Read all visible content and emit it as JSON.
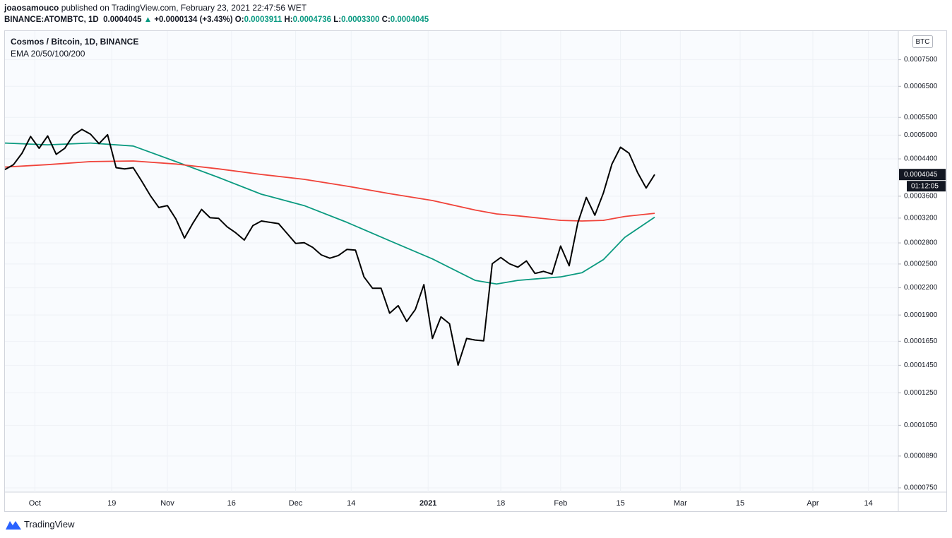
{
  "header": {
    "author": "joaosamouco",
    "published": "published on TradingView.com, February 23, 2021 22:47:56 WET",
    "symbol": "BINANCE:ATOMBTC, 1D",
    "last": "0.0004045",
    "arrow": "▲",
    "change": "+0.0000134 (+3.43%)",
    "open_label": "O:",
    "open": "0.0003911",
    "high_label": "H:",
    "high": "0.0004736",
    "low_label": "L:",
    "low": "0.0003300",
    "close_label": "C:",
    "close": "0.0004045"
  },
  "chart_data": {
    "type": "line",
    "title": "Cosmos / Bitcoin, 1D, BINANCE",
    "subtitle": "EMA 20/50/100/200",
    "currency": "BTC",
    "countdown": "01:12:05",
    "log_y": true,
    "grid": true,
    "xlim": [
      "2020-09-24",
      "2021-04-21"
    ],
    "ylim": [
      7.33e-05,
      0.000875
    ],
    "xticks": [
      {
        "value": "2020-10-01",
        "label": "Oct"
      },
      {
        "value": "2020-10-19",
        "label": "19"
      },
      {
        "value": "2020-11-01",
        "label": "Nov"
      },
      {
        "value": "2020-11-16",
        "label": "16"
      },
      {
        "value": "2020-12-01",
        "label": "Dec"
      },
      {
        "value": "2020-12-14",
        "label": "14"
      },
      {
        "value": "2021-01-01",
        "label": "2021"
      },
      {
        "value": "2021-01-18",
        "label": "18"
      },
      {
        "value": "2021-02-01",
        "label": "Feb"
      },
      {
        "value": "2021-02-15",
        "label": "15"
      },
      {
        "value": "2021-03-01",
        "label": "Mar"
      },
      {
        "value": "2021-03-15",
        "label": "15"
      },
      {
        "value": "2021-04-01",
        "label": "Apr"
      },
      {
        "value": "2021-04-14",
        "label": "14"
      }
    ],
    "yticks": [
      {
        "value": 0.00075,
        "label": "0.0007500"
      },
      {
        "value": 0.00065,
        "label": "0.0006500"
      },
      {
        "value": 0.00055,
        "label": "0.0005500"
      },
      {
        "value": 0.0005,
        "label": "0.0005000"
      },
      {
        "value": 0.00044,
        "label": "0.0004400"
      },
      {
        "value": 0.00036,
        "label": "0.0003600"
      },
      {
        "value": 0.00032,
        "label": "0.0003200"
      },
      {
        "value": 0.00028,
        "label": "0.0002800"
      },
      {
        "value": 0.00025,
        "label": "0.0002500"
      },
      {
        "value": 0.00022,
        "label": "0.0002200"
      },
      {
        "value": 0.00019,
        "label": "0.0001900"
      },
      {
        "value": 0.000165,
        "label": "0.0001650"
      },
      {
        "value": 0.000145,
        "label": "0.0001450"
      },
      {
        "value": 0.000125,
        "label": "0.0001250"
      },
      {
        "value": 0.000105,
        "label": "0.0001050"
      },
      {
        "value": 8.9e-05,
        "label": "0.0000890"
      },
      {
        "value": 7.5e-05,
        "label": "0.0000750"
      }
    ],
    "series": [
      {
        "color": "#0b9a80",
        "x": [
          "2020-09-24",
          "2020-10-04",
          "2020-10-14",
          "2020-10-24",
          "2020-11-03",
          "2020-11-13",
          "2020-11-23",
          "2020-12-03",
          "2020-12-13",
          "2020-12-23",
          "2021-01-02",
          "2021-01-12",
          "2021-01-17",
          "2021-01-22",
          "2021-02-01",
          "2021-02-06",
          "2021-02-11",
          "2021-02-16",
          "2021-02-23"
        ],
        "values": [
          0.0004792,
          0.0004746,
          0.0004792,
          0.0004716,
          0.0004336,
          0.0003981,
          0.0003638,
          0.0003422,
          0.0003128,
          0.0002834,
          0.0002569,
          0.0002289,
          0.0002245,
          0.0002289,
          0.0002332,
          0.0002386,
          0.000256,
          0.0002885,
          0.0003216
        ]
      },
      {
        "color": "#f0433a",
        "x": [
          "2020-09-24",
          "2020-10-04",
          "2020-10-14",
          "2020-10-24",
          "2020-11-03",
          "2020-11-13",
          "2020-11-23",
          "2020-12-03",
          "2020-12-13",
          "2020-12-23",
          "2021-01-02",
          "2021-01-12",
          "2021-01-17",
          "2021-01-22",
          "2021-02-01",
          "2021-02-06",
          "2021-02-11",
          "2021-02-16",
          "2021-02-23"
        ],
        "values": [
          0.0004211,
          0.0004266,
          0.0004336,
          0.000435,
          0.000428,
          0.0004169,
          0.0004047,
          0.0003942,
          0.00038,
          0.000365,
          0.0003517,
          0.0003341,
          0.0003273,
          0.0003239,
          0.0003161,
          0.0003151,
          0.0003161,
          0.0003228,
          0.0003284
        ]
      },
      {
        "color": "#000000",
        "x": [
          "2020-09-24",
          "2020-09-26",
          "2020-09-28",
          "2020-09-30",
          "2020-10-02",
          "2020-10-04",
          "2020-10-06",
          "2020-10-08",
          "2020-10-10",
          "2020-10-12",
          "2020-10-14",
          "2020-10-16",
          "2020-10-18",
          "2020-10-20",
          "2020-10-22",
          "2020-10-24",
          "2020-10-26",
          "2020-10-28",
          "2020-10-30",
          "2020-11-01",
          "2020-11-03",
          "2020-11-05",
          "2020-11-07",
          "2020-11-09",
          "2020-11-11",
          "2020-11-13",
          "2020-11-15",
          "2020-11-17",
          "2020-11-19",
          "2020-11-21",
          "2020-11-23",
          "2020-11-25",
          "2020-11-27",
          "2020-11-29",
          "2020-12-01",
          "2020-12-03",
          "2020-12-05",
          "2020-12-07",
          "2020-12-09",
          "2020-12-11",
          "2020-12-13",
          "2020-12-15",
          "2020-12-17",
          "2020-12-19",
          "2020-12-21",
          "2020-12-23",
          "2020-12-25",
          "2020-12-27",
          "2020-12-29",
          "2020-12-31",
          "2021-01-02",
          "2021-01-04",
          "2021-01-06",
          "2021-01-08",
          "2021-01-10",
          "2021-01-12",
          "2021-01-14",
          "2021-01-16",
          "2021-01-18",
          "2021-01-20",
          "2021-01-22",
          "2021-01-24",
          "2021-01-26",
          "2021-01-28",
          "2021-01-30",
          "2021-02-01",
          "2021-02-03",
          "2021-02-05",
          "2021-02-07",
          "2021-02-09",
          "2021-02-11",
          "2021-02-13",
          "2021-02-15",
          "2021-02-17",
          "2021-02-19",
          "2021-02-21",
          "2021-02-23"
        ],
        "values": [
          0.0004155,
          0.0004266,
          0.0004537,
          0.0004963,
          0.0004656,
          0.0004979,
          0.0004508,
          0.0004656,
          0.0004995,
          0.0005155,
          0.0005027,
          0.0004777,
          0.000501,
          0.0004196,
          0.0004169,
          0.0004196,
          0.0003903,
          0.0003613,
          0.0003387,
          0.0003422,
          0.0003184,
          0.0002874,
          0.0003117,
          0.0003353,
          0.0003206,
          0.0003195,
          0.0003053,
          0.0002957,
          0.0002844,
          0.0003074,
          0.0003151,
          0.0003128,
          0.0003107,
          0.0002947,
          0.0002793,
          0.0002803,
          0.0002733,
          0.0002626,
          0.0002579,
          0.0002617,
          0.0002703,
          0.0002694,
          0.0002332,
          0.0002194,
          0.0002194,
          0.0001919,
          0.0001998,
          0.0001835,
          0.0001958,
          0.0002237,
          0.0001675,
          0.0001881,
          0.0001813,
          0.0001451,
          0.0001675,
          0.0001661,
          0.0001654,
          0.0002504,
          0.0002589,
          0.0002504,
          0.0002458,
          0.0002541,
          0.0002376,
          0.0002403,
          0.0002368,
          0.0002753,
          0.0002476,
          0.0003117,
          0.0003577,
          0.000325,
          0.0003663,
          0.000428,
          0.0004686,
          0.0004537,
          0.0004088,
          0.0003762,
          0.0004045
        ]
      }
    ]
  },
  "footer": {
    "brand": "TradingView"
  }
}
